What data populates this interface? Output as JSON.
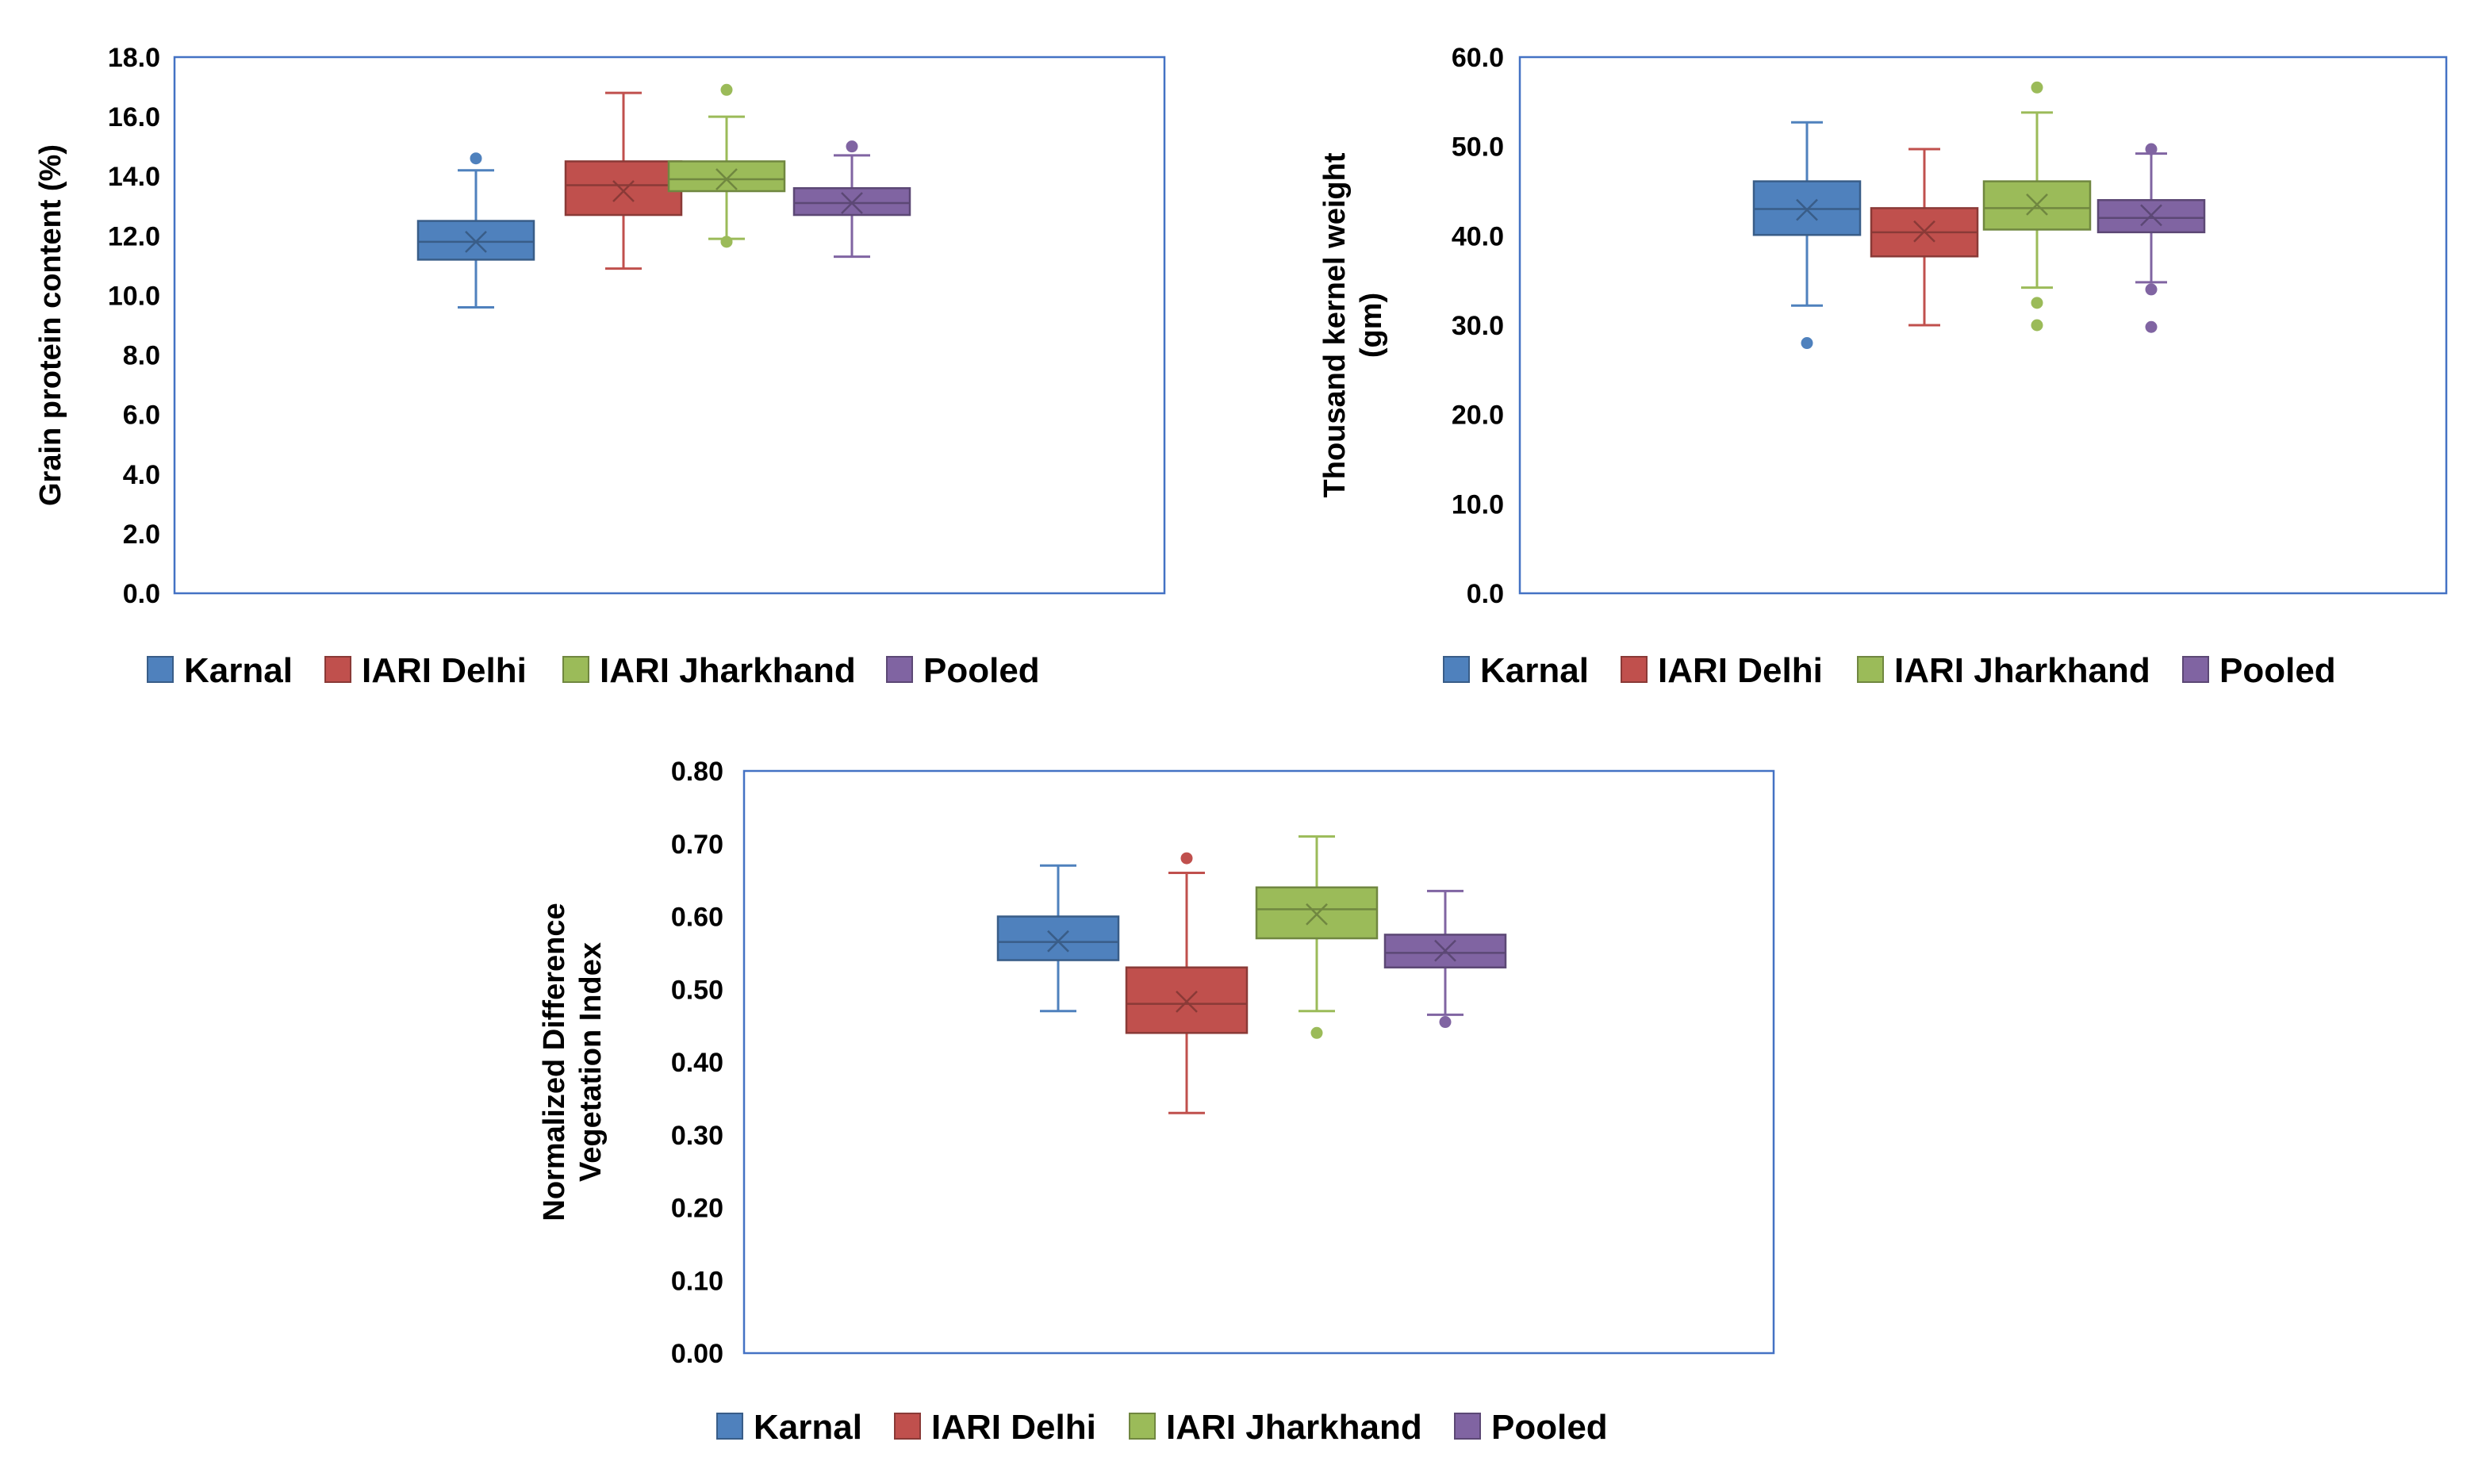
{
  "colors": {
    "Karnal": "#4F81BD",
    "IARI Delhi": "#C0504D",
    "IARI Jharkhand": "#9BBB59",
    "Pooled": "#8064A2",
    "plot_border": "#4472C4"
  },
  "chart_data": [
    {
      "type": "box",
      "id": "gpc",
      "title": "",
      "ylabel": "Grain protein content (%)",
      "ylabel_lines": [
        "Grain protein content (%)"
      ],
      "xlabel": "",
      "ylim": [
        0,
        18
      ],
      "yticks": [
        "0.0",
        "2.0",
        "4.0",
        "6.0",
        "8.0",
        "10.0",
        "12.0",
        "14.0",
        "16.0",
        "18.0"
      ],
      "ytick_values": [
        0,
        2,
        4,
        6,
        8,
        10,
        12,
        14,
        16,
        18
      ],
      "legend": [
        "Karnal",
        "IARI Delhi",
        "IARI Jharkhand",
        "Pooled"
      ],
      "series": [
        {
          "name": "Karnal",
          "min": 9.6,
          "q1": 11.2,
          "median": 11.8,
          "q3": 12.5,
          "max": 14.2,
          "mean": 11.8,
          "outliers": [
            14.6
          ]
        },
        {
          "name": "IARI Delhi",
          "min": 10.9,
          "q1": 12.7,
          "median": 13.7,
          "q3": 14.5,
          "max": 16.8,
          "mean": 13.5,
          "outliers": []
        },
        {
          "name": "IARI Jharkhand",
          "min": 11.9,
          "q1": 13.5,
          "median": 13.9,
          "q3": 14.5,
          "max": 16.0,
          "mean": 13.9,
          "outliers": [
            16.9,
            11.8
          ]
        },
        {
          "name": "Pooled",
          "min": 11.3,
          "q1": 12.7,
          "median": 13.1,
          "q3": 13.6,
          "max": 14.7,
          "mean": 13.1,
          "outliers": [
            15.0
          ]
        }
      ]
    },
    {
      "type": "box",
      "id": "tkw",
      "title": "",
      "ylabel": "Thousand kernel weight (gm)",
      "ylabel_lines": [
        "Thousand kernel weight",
        "(gm)"
      ],
      "xlabel": "",
      "ylim": [
        0,
        60
      ],
      "yticks": [
        "0.0",
        "10.0",
        "20.0",
        "30.0",
        "40.0",
        "50.0",
        "60.0"
      ],
      "ytick_values": [
        0,
        10,
        20,
        30,
        40,
        50,
        60
      ],
      "legend": [
        "Karnal",
        "IARI Delhi",
        "IARI Jharkhand",
        "Pooled"
      ],
      "series": [
        {
          "name": "Karnal",
          "min": 32.2,
          "q1": 40.1,
          "median": 43.0,
          "q3": 46.1,
          "max": 52.7,
          "mean": 42.9,
          "outliers": [
            28.0
          ]
        },
        {
          "name": "IARI Delhi",
          "min": 30.0,
          "q1": 37.7,
          "median": 40.4,
          "q3": 43.1,
          "max": 49.7,
          "mean": 40.5,
          "outliers": []
        },
        {
          "name": "IARI Jharkhand",
          "min": 34.2,
          "q1": 40.7,
          "median": 43.1,
          "q3": 46.1,
          "max": 53.8,
          "mean": 43.5,
          "outliers": [
            56.6,
            32.5,
            30.0
          ]
        },
        {
          "name": "Pooled",
          "min": 34.8,
          "q1": 40.4,
          "median": 42.0,
          "q3": 44.0,
          "max": 49.2,
          "mean": 42.3,
          "outliers": [
            49.7,
            34.0,
            29.8
          ]
        }
      ]
    },
    {
      "type": "box",
      "id": "ndvi",
      "title": "",
      "ylabel": "Normalized Difference Vegetation Index",
      "ylabel_lines": [
        "Normalized Difference",
        "Vegetation Index"
      ],
      "xlabel": "",
      "ylim": [
        0,
        0.8
      ],
      "yticks": [
        "0.00",
        "0.10",
        "0.20",
        "0.30",
        "0.40",
        "0.50",
        "0.60",
        "0.70",
        "0.80"
      ],
      "ytick_values": [
        0,
        0.1,
        0.2,
        0.3,
        0.4,
        0.5,
        0.6,
        0.7,
        0.8
      ],
      "legend": [
        "Karnal",
        "IARI Delhi",
        "IARI Jharkhand",
        "Pooled"
      ],
      "series": [
        {
          "name": "Karnal",
          "min": 0.47,
          "q1": 0.54,
          "median": 0.565,
          "q3": 0.6,
          "max": 0.67,
          "mean": 0.566,
          "outliers": []
        },
        {
          "name": "IARI Delhi",
          "min": 0.33,
          "q1": 0.44,
          "median": 0.48,
          "q3": 0.53,
          "max": 0.66,
          "mean": 0.483,
          "outliers": [
            0.68
          ]
        },
        {
          "name": "IARI Jharkhand",
          "min": 0.47,
          "q1": 0.57,
          "median": 0.61,
          "q3": 0.64,
          "max": 0.71,
          "mean": 0.603,
          "outliers": [
            0.44
          ]
        },
        {
          "name": "Pooled",
          "min": 0.465,
          "q1": 0.53,
          "median": 0.55,
          "q3": 0.575,
          "max": 0.635,
          "mean": 0.553,
          "outliers": [
            0.455
          ]
        }
      ]
    }
  ]
}
